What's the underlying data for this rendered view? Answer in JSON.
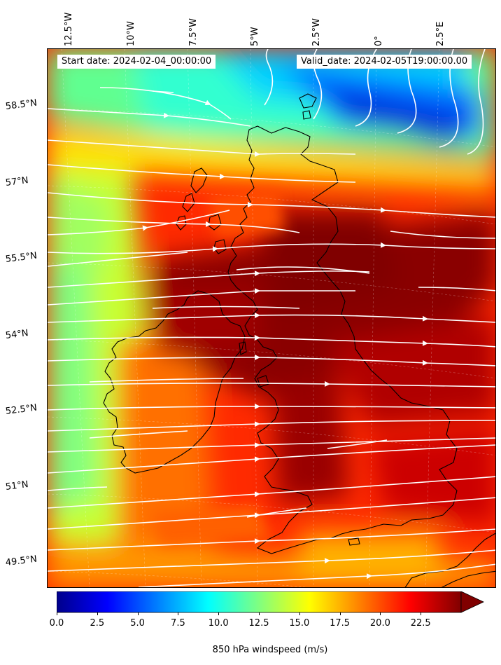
{
  "map": {
    "region": "British Isles",
    "start_label": "Start date: 2024-02-04_00:00:00",
    "valid_label": "Valid_date: 2024-02-05T19:00:00.00",
    "longitude_labels": [
      "12.5°W",
      "10°W",
      "7.5°W",
      "5°W",
      "2.5°W",
      "0°",
      "2.5°E"
    ],
    "latitude_labels": [
      "58.5°N",
      "57°N",
      "55.5°N",
      "54°N",
      "52.5°N",
      "51°N",
      "49.5°N"
    ],
    "coastline_color": "#000000",
    "streamline_color": "#ffffff",
    "field": "850 hPa windspeed",
    "wind_direction": "westerly to south-westerly flow; strongest winds (>22.5 m/s) across Scotland, northern England and Wales; weakest winds (<5 m/s) north of Scotland"
  },
  "colorbar": {
    "label": "850 hPa windspeed (m/s)",
    "ticks": [
      "0.0",
      "2.5",
      "5.0",
      "7.5",
      "10.0",
      "12.5",
      "15.0",
      "17.5",
      "20.0",
      "22.5"
    ],
    "min": 0,
    "max": 25,
    "extend": "max",
    "colormap": "jet",
    "stops": [
      "#00008b",
      "#0000ff",
      "#0080ff",
      "#00ffff",
      "#80ff80",
      "#ffff00",
      "#ff8000",
      "#ff0000",
      "#800000"
    ]
  }
}
